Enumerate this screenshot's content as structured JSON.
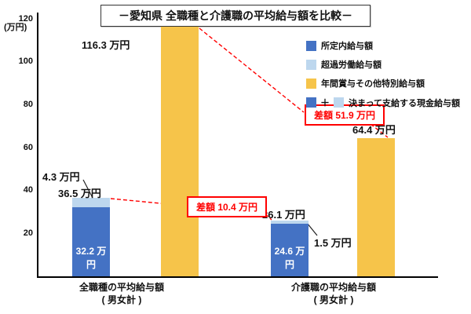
{
  "title": "－愛知県 全職種と介護職の平均給与額を比較－",
  "y_axis": {
    "unit": "(万円)",
    "ticks": [
      "120",
      "100",
      "80",
      "60",
      "40",
      "20"
    ]
  },
  "legend": {
    "fixed": "所定内給与額",
    "overtime": "超過労働給与額",
    "bonus": "年間賞与その他特別給与額",
    "plus": "＋",
    "cash": "決まって支給する現金給与額"
  },
  "groups": {
    "all": {
      "category_line1": "全職種の平均給与額",
      "category_line2": "( 男女計 )",
      "total_label": "36.5 万円",
      "overtime_label": "4.3 万円",
      "base_label": "32.2 万円",
      "bonus_label": "116.3 万円"
    },
    "care": {
      "category_line1": "介護職の平均給与額",
      "category_line2": "( 男女計 )",
      "total_label": "26.1 万円",
      "overtime_label": "1.5 万円",
      "base_label": "24.6 万円",
      "bonus_label": "64.4 万円"
    }
  },
  "diffs": {
    "cash": "差額 10.4 万円",
    "bonus": "差額 51.9 万円"
  },
  "colors": {
    "base": "#4472C4",
    "overtime": "#BDD7EE",
    "bonus": "#F6C44A",
    "diff": "#FF0000"
  },
  "chart_data": {
    "type": "bar",
    "title": "－愛知県 全職種と介護職の平均給与額を比較－",
    "ylabel": "万円",
    "ylim": [
      0,
      120
    ],
    "grid": false,
    "legend_position": "top-right",
    "categories": [
      "全職種の平均給与額（男女計）",
      "介護職の平均給与額（男女計）"
    ],
    "series": [
      {
        "name": "所定内給与額",
        "values": [
          32.2,
          24.6
        ],
        "color": "#4472C4"
      },
      {
        "name": "超過労働給与額",
        "values": [
          4.3,
          1.5
        ],
        "color": "#BDD7EE"
      },
      {
        "name": "年間賞与その他特別給与額",
        "values": [
          116.3,
          64.4
        ],
        "color": "#F6C44A"
      }
    ],
    "stacked_totals": {
      "決まって支給する現金給与額": [
        36.5,
        26.1
      ]
    },
    "differences": {
      "決まって支給する現金給与額": 10.4,
      "年間賞与その他特別給与額": 51.9
    }
  }
}
